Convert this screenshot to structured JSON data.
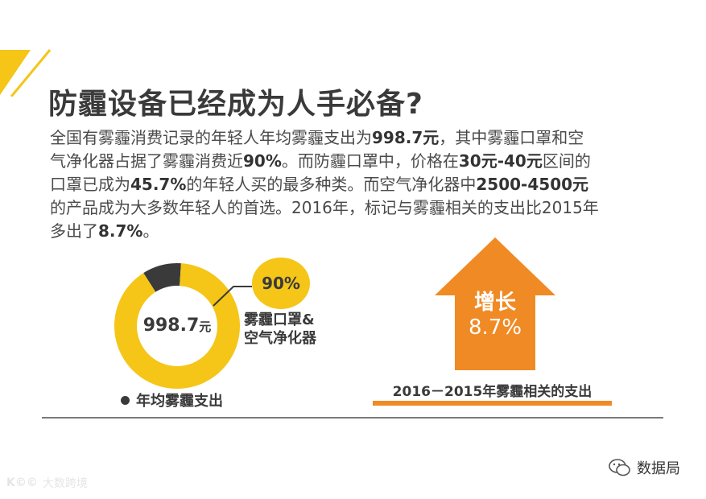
{
  "colors": {
    "accent_yellow": "#f5c518",
    "dark_segment": "#3a3a3a",
    "orange": "#f08a24"
  },
  "title": "防霾设备已经成为人手必备?",
  "paragraph": {
    "line1": {
      "a": "全国有雾霾消费记录的年轻人年均雾霾支出为",
      "b": "998.7元",
      "c": "，其中雾霾口罩和空"
    },
    "line2": {
      "a": "气净化器占据了雾霾消费近",
      "b": "90%",
      "c": "。而防霾口罩中，价格在",
      "d": "30元-40元",
      "e": "区间的"
    },
    "line3": {
      "a": "口罩已成为",
      "b": "45.7%",
      "c": "的年轻人买的最多种类。而空气净化器中",
      "d": "2500-4500元"
    },
    "line4": "的产品成为大多数年轻人的首选。2016年，标记与雾霾相关的支出比2015年",
    "line5": {
      "a": "多出了",
      "b": "8.7%",
      "c": "。"
    }
  },
  "donut": {
    "center_value": "998.7",
    "center_unit": "元",
    "badge": "90%",
    "segment_label_line1": "雾霾口罩&",
    "segment_label_line2": "空气净化器",
    "legend": "年均雾霾支出"
  },
  "arrow": {
    "line1": "增长",
    "line2": "8.7%",
    "caption": "2016－2015年雾霾相关的支出"
  },
  "brand": {
    "icon": "wechat-icon",
    "text": "数据局"
  },
  "watermark": {
    "logo": "K©©",
    "text": "大数跨境"
  },
  "chart_data": {
    "type": "pie",
    "title": "年均雾霾支出",
    "total_label": "998.7元",
    "slices": [
      {
        "label": "雾霾口罩&空气净化器",
        "value": 90,
        "color": "#f5c518"
      },
      {
        "label": "",
        "value": 10,
        "color": "#3a3a3a"
      }
    ]
  }
}
